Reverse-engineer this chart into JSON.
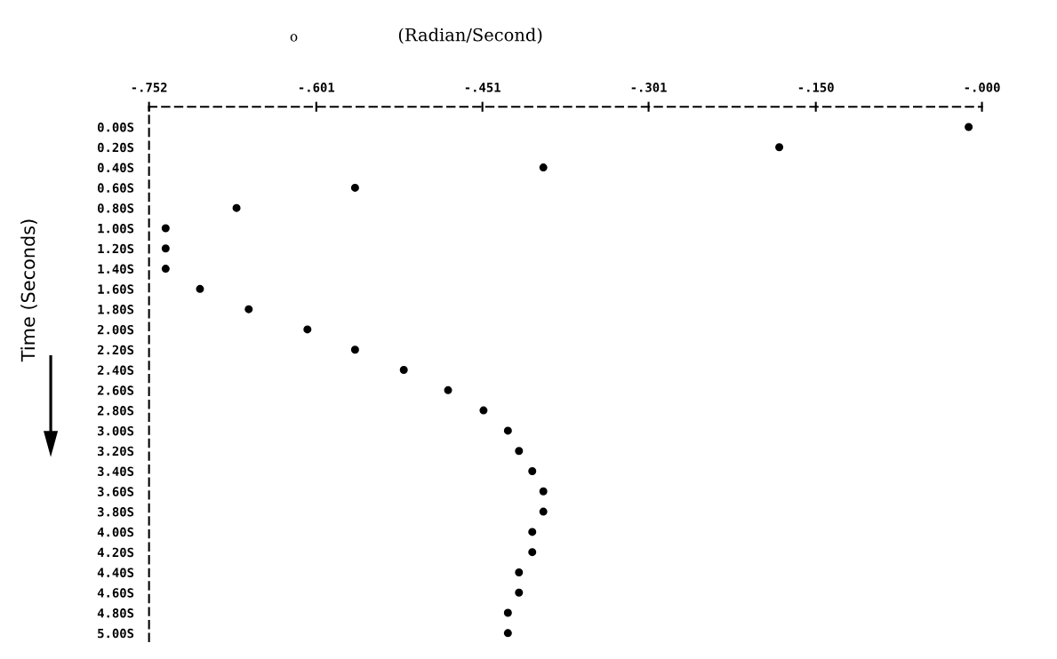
{
  "chart_data": {
    "type": "scatter",
    "orientation": "horizontal",
    "title": "(Radian/Second)",
    "annotations": [
      "o"
    ],
    "ylabel": "Time (Seconds)",
    "categories": [
      "0.00S",
      "0.20S",
      "0.40S",
      "0.60S",
      "0.80S",
      "1.00S",
      "1.20S",
      "1.40S",
      "1.60S",
      "1.80S",
      "2.00S",
      "2.20S",
      "2.40S",
      "2.60S",
      "2.80S",
      "3.00S",
      "3.20S",
      "3.40S",
      "3.60S",
      "3.80S",
      "4.00S",
      "4.20S",
      "4.40S",
      "4.60S",
      "4.80S",
      "5.00S"
    ],
    "series": [
      {
        "color": "#000000",
        "values": [
          -0.012,
          -0.183,
          -0.396,
          -0.566,
          -0.673,
          -0.737,
          -0.737,
          -0.737,
          -0.706,
          -0.662,
          -0.609,
          -0.566,
          -0.522,
          -0.482,
          -0.45,
          -0.428,
          -0.418,
          -0.406,
          -0.396,
          -0.396,
          -0.406,
          -0.406,
          -0.418,
          -0.418,
          -0.428,
          -0.428
        ]
      }
    ],
    "xlim": [
      -0.752,
      0.0
    ],
    "xticks": [
      {
        "value": -0.752,
        "label": "-.752"
      },
      {
        "value": -0.601,
        "label": "-.601"
      },
      {
        "value": -0.451,
        "label": "-.451"
      },
      {
        "value": -0.301,
        "label": "-.301"
      },
      {
        "value": -0.15,
        "label": "-.150"
      },
      {
        "value": 0.0,
        "label": "-.000"
      }
    ],
    "marker": "circle",
    "grid": false,
    "legend": false
  }
}
